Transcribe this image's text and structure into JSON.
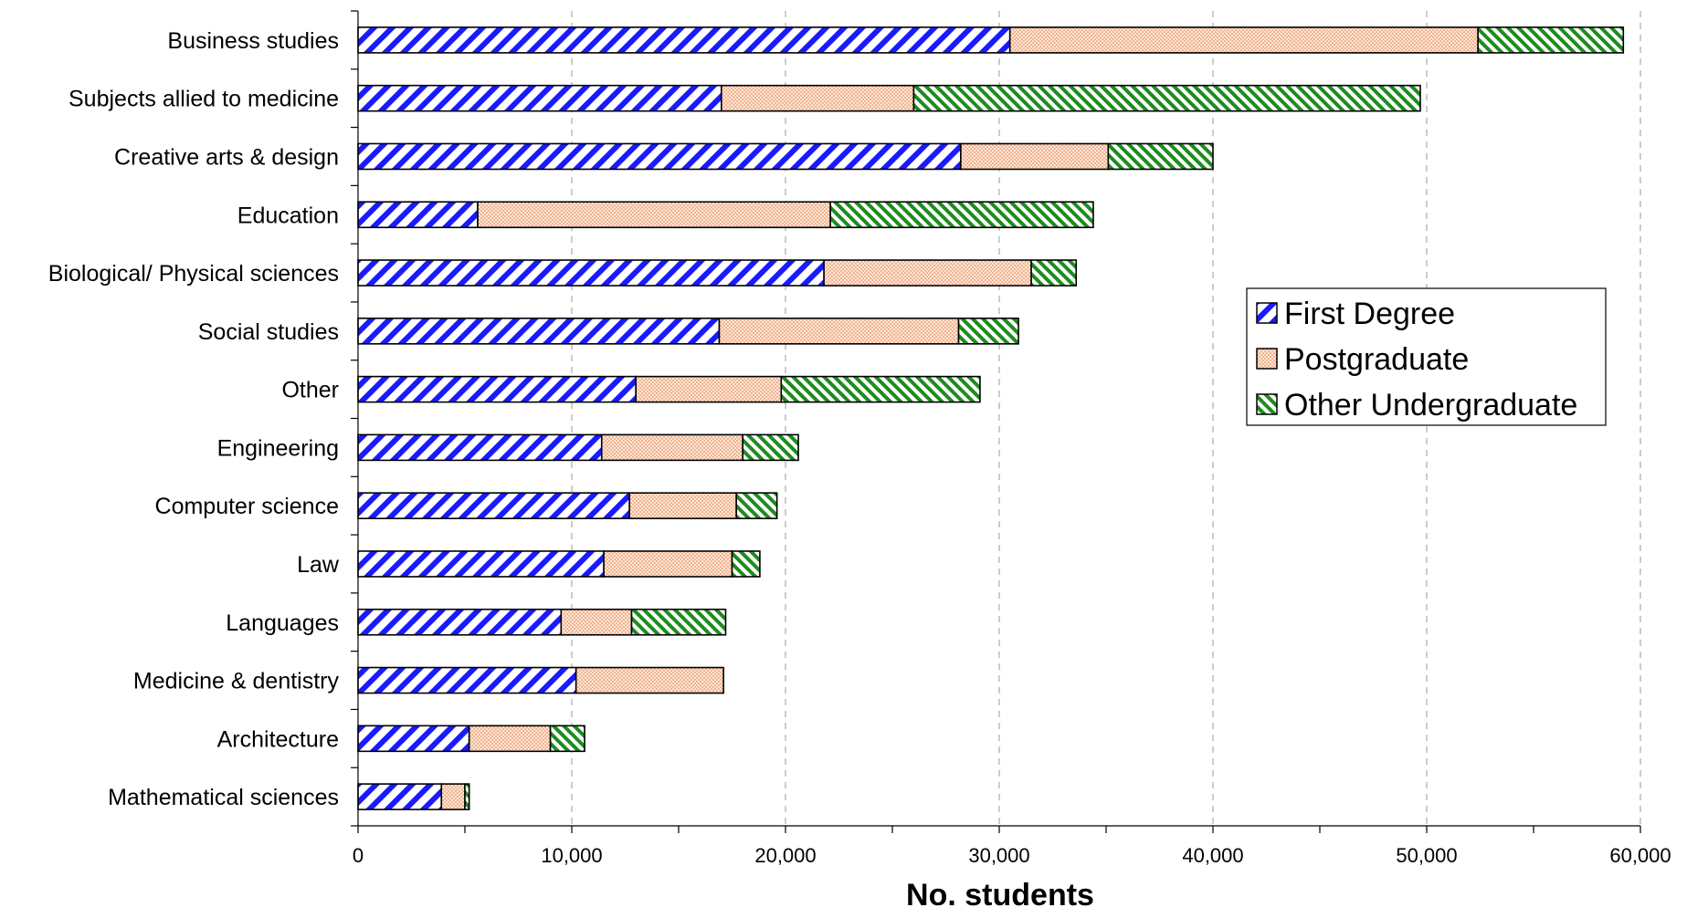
{
  "chart_data": {
    "type": "bar",
    "orientation": "horizontal",
    "stacked": true,
    "categories": [
      "Business studies",
      "Subjects allied to medicine",
      "Creative arts & design",
      "Education",
      "Biological/ Physical sciences",
      "Social studies",
      "Other",
      "Engineering",
      "Computer science",
      "Law",
      "Languages",
      "Medicine & dentistry",
      "Architecture",
      "Mathematical sciences"
    ],
    "series": [
      {
        "name": "First Degree",
        "color": "#1a1aff",
        "pattern": "diagonal-hatch-up",
        "values": [
          30500,
          17000,
          28200,
          5600,
          21800,
          16900,
          13000,
          11400,
          12700,
          11500,
          9500,
          10200,
          5200,
          3900
        ]
      },
      {
        "name": "Postgraduate",
        "color": "#f4a878",
        "pattern": "dots",
        "values": [
          21900,
          9000,
          6900,
          16500,
          9700,
          11200,
          6800,
          6600,
          5000,
          6000,
          3300,
          6900,
          3800,
          1100
        ]
      },
      {
        "name": "Other Undergraduate",
        "color": "#1e8c1e",
        "pattern": "diagonal-hatch-down",
        "values": [
          6800,
          23700,
          4900,
          12300,
          2100,
          2800,
          9300,
          2600,
          1900,
          1300,
          4400,
          0,
          1600,
          200
        ]
      }
    ],
    "xlabel": "No. students",
    "ylabel": "",
    "xlim": [
      0,
      60000
    ],
    "x_ticks": [
      "0",
      "10,000",
      "20,000",
      "30,000",
      "40,000",
      "50,000",
      "60,000"
    ],
    "x_tick_values": [
      0,
      10000,
      20000,
      30000,
      40000,
      50000,
      60000
    ],
    "grid": "vertical dashed",
    "legend_position": "right"
  }
}
